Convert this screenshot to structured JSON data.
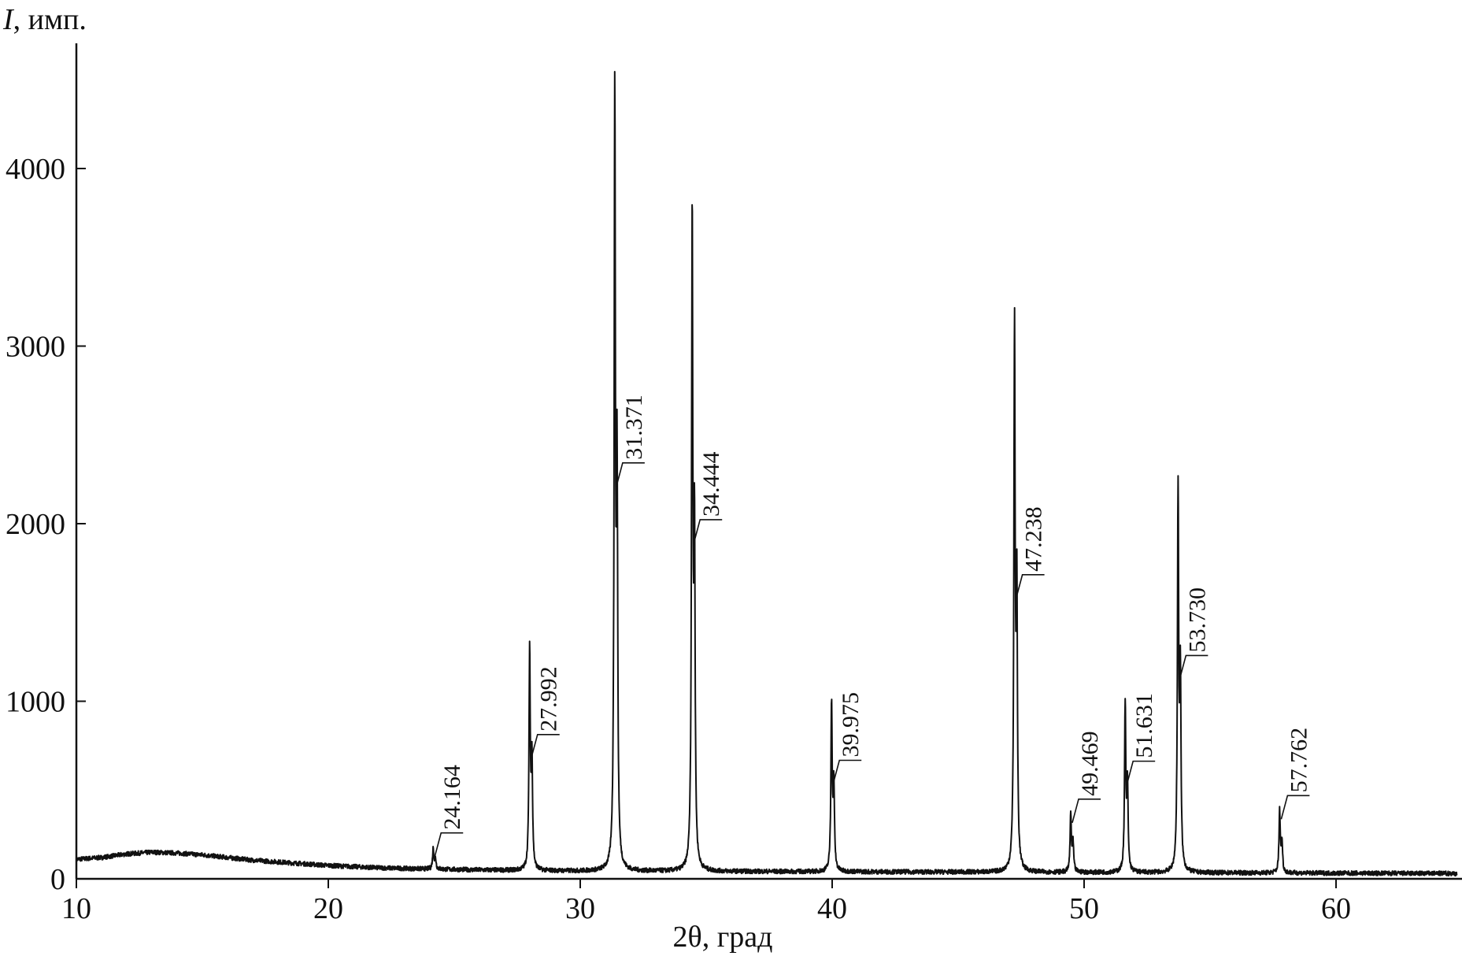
{
  "chart_data": {
    "type": "line",
    "title": "",
    "xlabel": "2θ, град",
    "ylabel_var": "I",
    "ylabel_unit": ", имп.",
    "xlim": [
      10,
      64.8
    ],
    "ylim": [
      0,
      4700
    ],
    "x_ticks": [
      10,
      20,
      30,
      40,
      50,
      60
    ],
    "x_tick_labels": [
      "10",
      "20",
      "30",
      "40",
      "50",
      "60"
    ],
    "y_ticks": [
      0,
      1000,
      2000,
      3000,
      4000
    ],
    "y_tick_labels": [
      "0",
      "1000",
      "2000",
      "3000",
      "4000"
    ],
    "grid": false,
    "line_color": "#111111",
    "background": {
      "points": [
        [
          10,
          110
        ],
        [
          11,
          120
        ],
        [
          12,
          140
        ],
        [
          13,
          150
        ],
        [
          14,
          145
        ],
        [
          15,
          135
        ],
        [
          16,
          120
        ],
        [
          17,
          105
        ],
        [
          18,
          95
        ],
        [
          19,
          85
        ],
        [
          20,
          75
        ],
        [
          22,
          62
        ],
        [
          24,
          55
        ],
        [
          26,
          50
        ],
        [
          28,
          46
        ],
        [
          30,
          44
        ],
        [
          35,
          42
        ],
        [
          40,
          40
        ],
        [
          45,
          38
        ],
        [
          50,
          36
        ],
        [
          55,
          34
        ],
        [
          60,
          32
        ],
        [
          64.8,
          30
        ]
      ]
    },
    "peaks": [
      {
        "x": 24.164,
        "height": 170,
        "label": "24.164"
      },
      {
        "x": 27.992,
        "height": 1270,
        "label": "27.992"
      },
      {
        "x": 31.371,
        "height": 4330,
        "label": "31.371"
      },
      {
        "x": 34.444,
        "height": 3690,
        "label": "34.444"
      },
      {
        "x": 39.975,
        "height": 980,
        "label": "39.975"
      },
      {
        "x": 47.238,
        "height": 3070,
        "label": "47.238"
      },
      {
        "x": 49.469,
        "height": 360,
        "label": "49.469"
      },
      {
        "x": 51.631,
        "height": 970,
        "label": "51.631"
      },
      {
        "x": 53.73,
        "height": 2160,
        "label": "53.730"
      },
      {
        "x": 57.762,
        "height": 380,
        "label": "57.762"
      }
    ]
  }
}
